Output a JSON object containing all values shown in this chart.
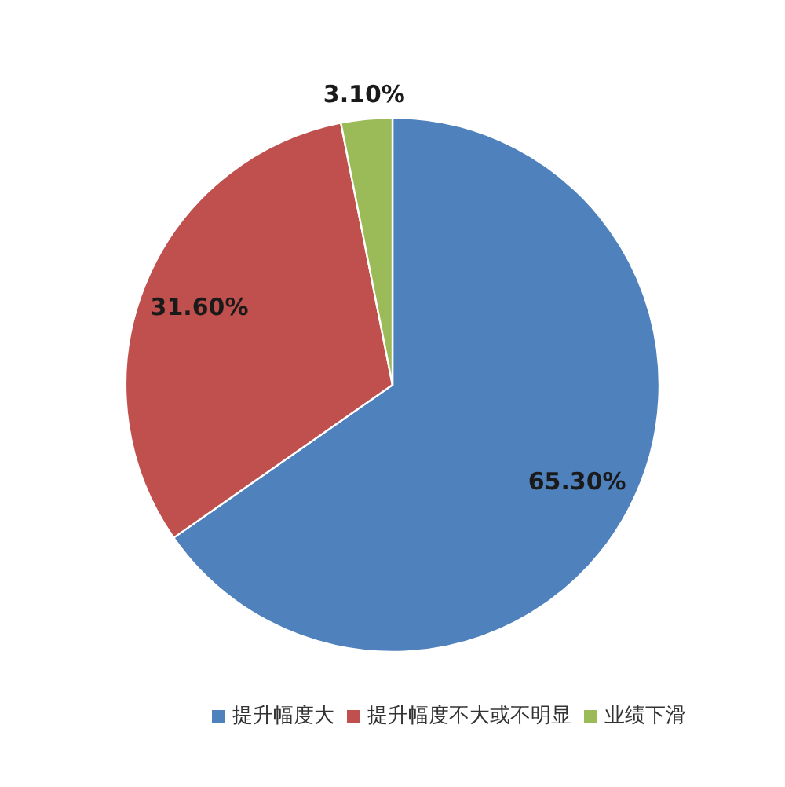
{
  "chart_data": {
    "type": "pie",
    "categories": [
      "提升幅度大",
      "提升幅度不大或不明显",
      "业绩下滑"
    ],
    "values": [
      65.3,
      31.6,
      3.1
    ],
    "colors": [
      "#4f81bd",
      "#c0504d",
      "#9bbb59"
    ],
    "value_labels": [
      "65.30%",
      "31.60%",
      "3.10%"
    ],
    "legend": "bottom"
  }
}
